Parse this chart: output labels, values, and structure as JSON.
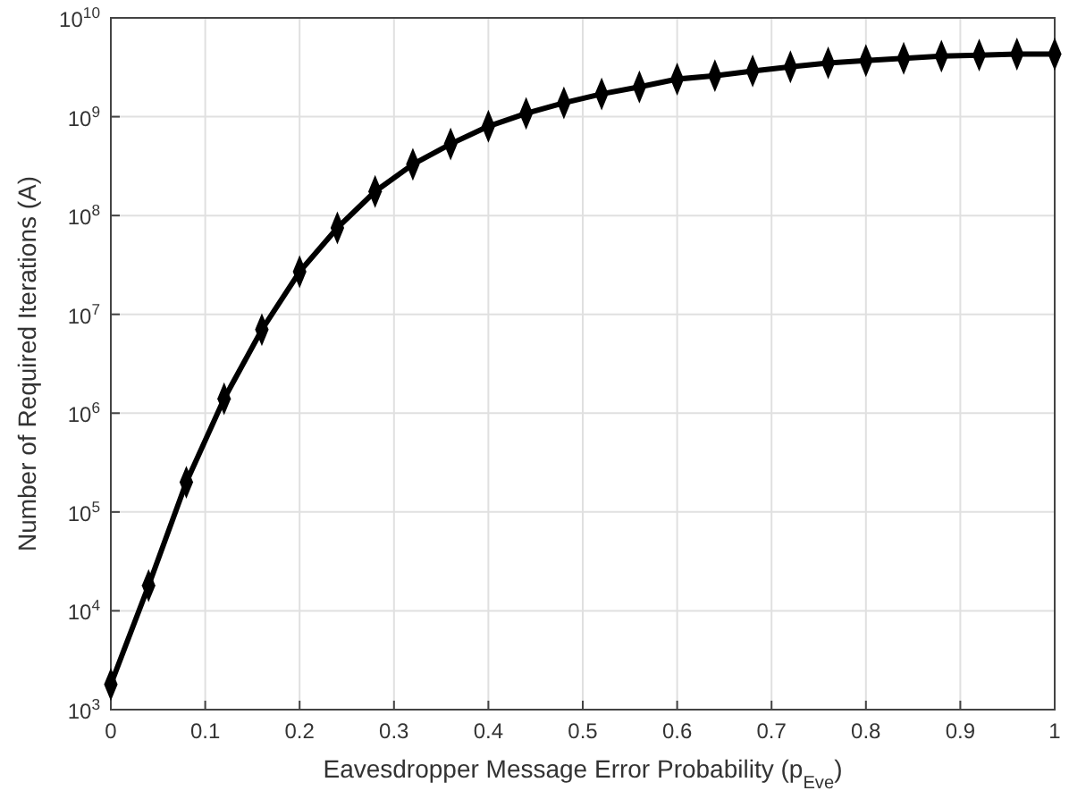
{
  "chart_data": {
    "type": "line",
    "xlabel": "Eavesdropper Message Error Probability (p$_{Eve}$)",
    "ylabel": "Number of Required Iterations (A)",
    "x": [
      0,
      0.04,
      0.08,
      0.12,
      0.16,
      0.2,
      0.24,
      0.28,
      0.32,
      0.36,
      0.4,
      0.44,
      0.48,
      0.52,
      0.56,
      0.6,
      0.64,
      0.68,
      0.72,
      0.76,
      0.8,
      0.84,
      0.88,
      0.92,
      0.96,
      1
    ],
    "series": [
      {
        "color": "#000000",
        "values": [
          1800,
          18000,
          200000,
          1400000,
          7000000,
          27000000,
          75000000,
          175000000,
          330000000,
          530000000,
          800000000,
          1080000000,
          1380000000,
          1700000000,
          2000000000,
          2400000000,
          2600000000,
          2900000000,
          3200000000,
          3500000000,
          3700000000,
          3900000000,
          4100000000,
          4200000000,
          4300000000,
          4300000000
        ]
      }
    ],
    "xlim": [
      0,
      1
    ],
    "xticks": [
      0,
      0.1,
      0.2,
      0.3,
      0.4,
      0.5,
      0.6,
      0.7,
      0.8,
      0.9,
      1
    ],
    "ylim": [
      1000,
      10000000000
    ],
    "yticks": [
      {
        "value": 1000,
        "label": "10$^{3}$"
      },
      {
        "value": 10000,
        "label": "10$^{4}$"
      },
      {
        "value": 100000,
        "label": "10$^{5}$"
      },
      {
        "value": 1000000,
        "label": "10$^{6}$"
      },
      {
        "value": 10000000,
        "label": "10$^{7}$"
      },
      {
        "value": 100000000,
        "label": "10$^{8}$"
      },
      {
        "value": 1000000000,
        "label": "10$^{9}$"
      },
      {
        "value": 10000000000,
        "label": "10$^{10}$"
      }
    ],
    "log": "y",
    "grid": true,
    "marker": "diamond",
    "line_style": "solid"
  }
}
